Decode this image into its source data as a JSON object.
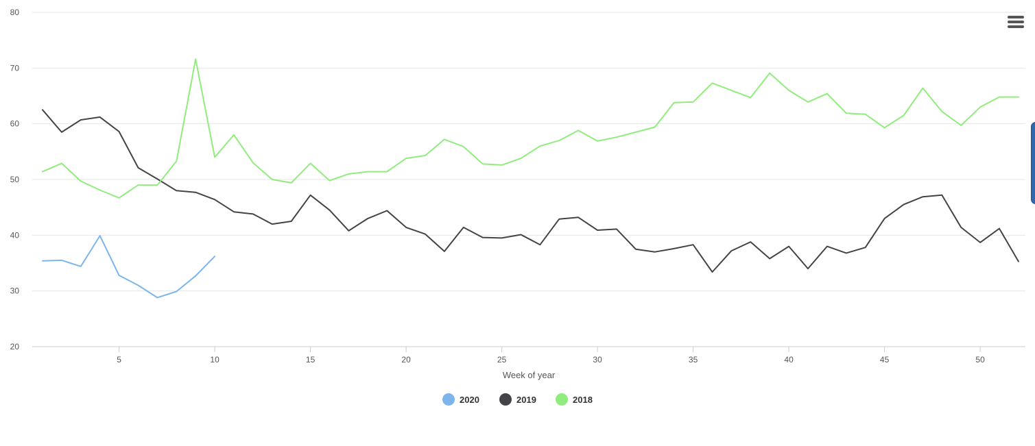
{
  "chart_data": {
    "type": "line",
    "title": "",
    "xlabel": "Week of year",
    "ylabel": "",
    "xlim": [
      1,
      52
    ],
    "ylim": [
      20,
      80
    ],
    "x_ticks": [
      5,
      10,
      15,
      20,
      25,
      30,
      35,
      40,
      45,
      50
    ],
    "y_ticks": [
      20,
      30,
      40,
      50,
      60,
      70,
      80
    ],
    "grid": "horizontal",
    "legend": "bottom-center",
    "series": [
      {
        "name": "2020",
        "color": "#7cb5ec",
        "x": [
          1,
          2,
          3,
          4,
          5,
          6,
          7,
          8,
          9,
          10
        ],
        "values": [
          35.4,
          35.5,
          34.4,
          39.9,
          32.8,
          31.0,
          28.8,
          29.9,
          32.7,
          36.2
        ]
      },
      {
        "name": "2019",
        "color": "#434348",
        "x": [
          1,
          2,
          3,
          4,
          5,
          6,
          7,
          8,
          9,
          10,
          11,
          12,
          13,
          14,
          15,
          16,
          17,
          18,
          19,
          20,
          21,
          22,
          23,
          24,
          25,
          26,
          27,
          28,
          29,
          30,
          31,
          32,
          33,
          34,
          35,
          36,
          37,
          38,
          39,
          40,
          41,
          42,
          43,
          44,
          45,
          46,
          47,
          48,
          49,
          50,
          51,
          52
        ],
        "values": [
          62.5,
          58.5,
          60.7,
          61.2,
          58.6,
          52.1,
          50.1,
          48.0,
          47.7,
          46.4,
          44.2,
          43.8,
          42.0,
          42.5,
          47.2,
          44.5,
          40.8,
          43.0,
          44.4,
          41.4,
          40.2,
          37.1,
          41.4,
          39.6,
          39.5,
          40.1,
          38.3,
          42.9,
          43.2,
          40.9,
          41.1,
          37.5,
          37.0,
          37.6,
          38.3,
          33.4,
          37.2,
          38.8,
          35.8,
          38.0,
          34.0,
          38.0,
          36.8,
          37.8,
          43.0,
          45.5,
          46.9,
          47.2,
          41.4,
          38.7,
          41.2,
          35.3
        ]
      },
      {
        "name": "2018",
        "color": "#90ed7d",
        "x": [
          1,
          2,
          3,
          4,
          5,
          6,
          7,
          8,
          9,
          10,
          11,
          12,
          13,
          14,
          15,
          16,
          17,
          18,
          19,
          20,
          21,
          22,
          23,
          24,
          25,
          26,
          27,
          28,
          29,
          30,
          31,
          32,
          33,
          34,
          35,
          36,
          37,
          38,
          39,
          40,
          41,
          42,
          43,
          44,
          45,
          46,
          47,
          48,
          49,
          50,
          51,
          52
        ],
        "values": [
          51.4,
          52.9,
          49.7,
          48.1,
          46.7,
          49.0,
          49.0,
          53.3,
          71.6,
          54.0,
          58.0,
          53.0,
          50.0,
          49.4,
          52.9,
          49.8,
          51.0,
          51.4,
          51.4,
          53.8,
          54.3,
          57.2,
          55.9,
          52.8,
          52.6,
          53.8,
          56.0,
          57.0,
          58.8,
          56.9,
          57.6,
          58.5,
          59.4,
          63.8,
          63.9,
          67.3,
          66.0,
          64.7,
          69.1,
          66.0,
          63.9,
          65.4,
          61.9,
          61.7,
          59.3,
          61.5,
          66.4,
          62.2,
          59.7,
          63.0,
          64.8,
          64.8
        ]
      }
    ]
  },
  "legend": {
    "items": [
      {
        "label": "2020",
        "color": "#7cb5ec"
      },
      {
        "label": "2019",
        "color": "#434348"
      },
      {
        "label": "2018",
        "color": "#90ed7d"
      }
    ]
  },
  "toolbar": {
    "menu_icon": "hamburger-menu-icon"
  }
}
